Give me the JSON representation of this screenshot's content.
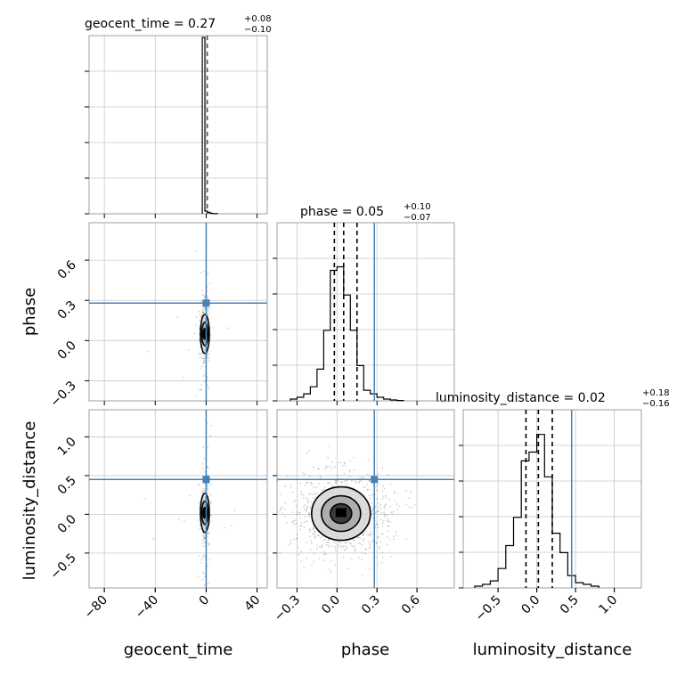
{
  "chart_data": {
    "type": "corner",
    "parameters": [
      "geocent_time",
      "phase",
      "luminosity_distance"
    ],
    "truth_color": "#4682b4",
    "histogram_color": "#000000",
    "grid": true,
    "panels": {
      "geocent_time": {
        "title_base": "geocent_time = 0.27",
        "title_sup": "+0.08",
        "title_sub": "−0.10",
        "median": 0.27,
        "err_plus": 0.08,
        "err_minus": 0.1,
        "xlim": [
          -92,
          48
        ],
        "ticks": [
          -80,
          -40,
          0,
          40
        ],
        "tick_labels": [
          "−80",
          "−40",
          "0",
          "40"
        ],
        "histogram": {
          "bins": [
            -3,
            -1,
            1,
            3,
            5,
            7,
            9
          ],
          "counts": [
            100,
            1.5,
            0.8,
            0.3,
            0.1,
            0.05
          ],
          "ymax": 100
        }
      },
      "phase": {
        "title_base": "phase = 0.05",
        "title_sup": "+0.10",
        "title_sub": "−0.07",
        "median": 0.05,
        "err_plus": 0.1,
        "err_minus": 0.07,
        "truth": 0.28,
        "quantiles": [
          -0.02,
          0.05,
          0.15
        ],
        "xlim": [
          -0.45,
          0.88
        ],
        "ticks": [
          -0.3,
          0.0,
          0.3,
          0.6
        ],
        "tick_labels": [
          "−0.3",
          "0.0",
          "0.3",
          "0.6"
        ],
        "histogram": {
          "bins": [
            -0.35,
            -0.3,
            -0.25,
            -0.2,
            -0.15,
            -0.1,
            -0.05,
            0.0,
            0.05,
            0.1,
            0.15,
            0.2,
            0.25,
            0.3,
            0.35,
            0.4,
            0.45,
            0.5
          ],
          "counts": [
            1,
            2,
            4,
            8,
            18,
            40,
            74,
            76,
            60,
            40,
            20,
            6,
            4,
            2,
            1,
            0.5,
            0.2
          ],
          "ymax": 100
        }
      },
      "luminosity_distance": {
        "title_base": "luminosity_distance = 0.02",
        "title_sup": "+0.18",
        "title_sub": "−0.16",
        "median": 0.02,
        "err_plus": 0.18,
        "err_minus": 0.16,
        "truth": 0.45,
        "quantiles": [
          -0.14,
          0.02,
          0.2
        ],
        "xlim": [
          -0.95,
          1.35
        ],
        "ticks": [
          -0.5,
          0.0,
          0.5,
          1.0
        ],
        "tick_labels": [
          "−0.5",
          "0.0",
          "0.5",
          "1.0"
        ],
        "histogram": {
          "bins": [
            -0.8,
            -0.7,
            -0.6,
            -0.5,
            -0.4,
            -0.3,
            -0.2,
            -0.1,
            0.0,
            0.1,
            0.2,
            0.3,
            0.4,
            0.5,
            0.6,
            0.7,
            0.8
          ],
          "counts": [
            1,
            2,
            4,
            11,
            24,
            40,
            72,
            77,
            87,
            63,
            31,
            20,
            7,
            3,
            2,
            1
          ],
          "ymax": 100
        }
      }
    },
    "scatter_panels": [
      {
        "x_param": "geocent_time",
        "y_param": "phase",
        "ylim": [
          -0.45,
          0.88
        ],
        "yticks": [
          -0.3,
          0.0,
          0.3,
          0.6
        ],
        "ytick_labels": [
          "−0.3",
          "0.0",
          "0.3",
          "0.6"
        ],
        "truth_x": 0,
        "truth_y": 0.28,
        "center": [
          -1,
          0.05
        ]
      },
      {
        "x_param": "geocent_time",
        "y_param": "luminosity_distance",
        "ylim": [
          -0.95,
          1.35
        ],
        "yticks": [
          -0.5,
          0.0,
          0.5,
          1.0
        ],
        "ytick_labels": [
          "−0.5",
          "0.0",
          "0.5",
          "1.0"
        ],
        "truth_x": 0,
        "truth_y": 0.45,
        "center": [
          -1,
          0.02
        ]
      },
      {
        "x_param": "phase",
        "y_param": "luminosity_distance",
        "ylim": [
          -0.95,
          1.35
        ],
        "yticks": [
          -0.5,
          0.0,
          0.5,
          1.0
        ],
        "ytick_labels": [
          "−0.5",
          "0.0",
          "0.5",
          "1.0"
        ],
        "truth_x": 0.28,
        "truth_y": 0.45,
        "center": [
          0.03,
          0.01
        ]
      }
    ],
    "xlabel_0": "geocent_time",
    "xlabel_1": "phase",
    "xlabel_2": "luminosity_distance",
    "ylabel_1": "phase",
    "ylabel_2": "luminosity_distance"
  }
}
